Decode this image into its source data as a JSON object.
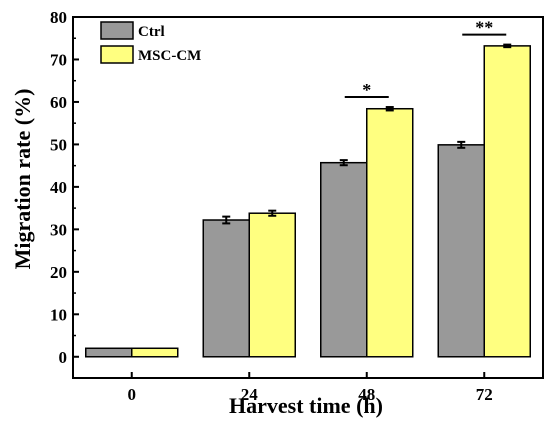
{
  "chart_data": {
    "type": "bar",
    "xlabel": "Harvest time (h)",
    "ylabel": "Migration rate (%)",
    "categories": [
      "0",
      "24",
      "48",
      "72"
    ],
    "ylim": [
      -5,
      80
    ],
    "yticks": [
      0,
      10,
      20,
      30,
      40,
      50,
      60,
      70,
      80
    ],
    "series": [
      {
        "name": "Ctrl",
        "color": "#999999",
        "values": [
          2.0,
          32.2,
          45.7,
          49.9
        ],
        "errors": [
          0,
          0.8,
          0.6,
          0.7
        ]
      },
      {
        "name": "MSC-CM",
        "color": "#ffff80",
        "values": [
          2.0,
          33.8,
          58.4,
          73.2
        ],
        "errors": [
          0,
          0.6,
          0.4,
          0.3
        ]
      }
    ],
    "significance": [
      {
        "category": "48",
        "label": "*"
      },
      {
        "category": "72",
        "label": "**"
      }
    ],
    "legend_position": "top-left",
    "grid": false
  }
}
